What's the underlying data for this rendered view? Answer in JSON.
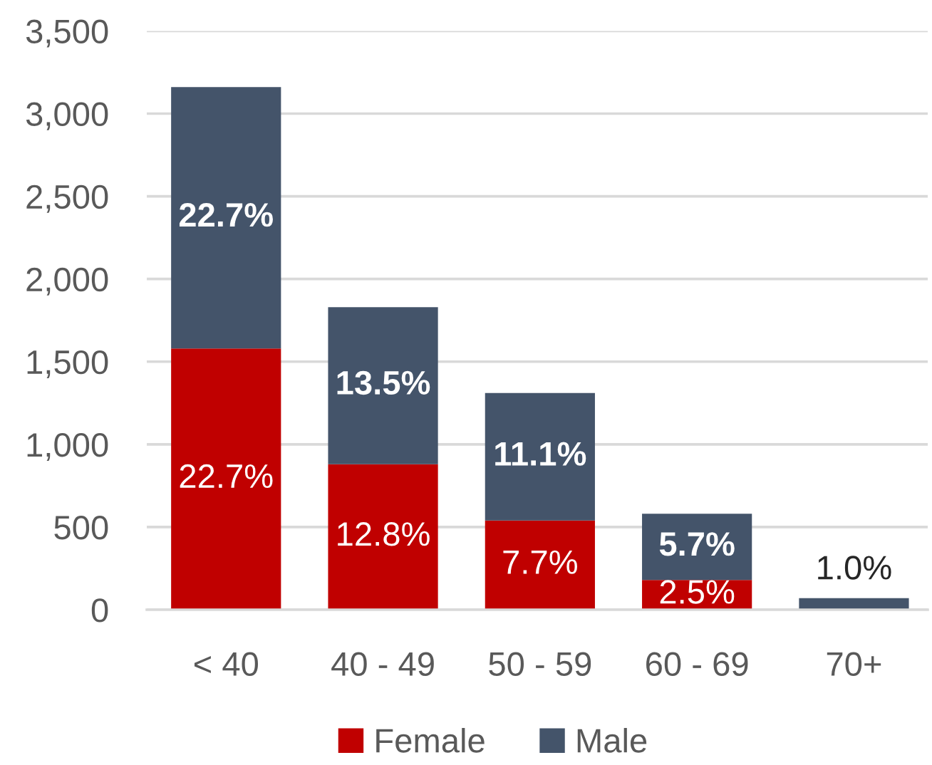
{
  "chart_data": {
    "type": "bar",
    "stacked": true,
    "categories": [
      "< 40",
      "40 - 49",
      "50 - 59",
      "60 - 69",
      "70+"
    ],
    "series": [
      {
        "name": "Female",
        "color": "#c00000",
        "values": [
          1580,
          880,
          540,
          180,
          0
        ]
      },
      {
        "name": "Male",
        "color": "#44546a",
        "values": [
          1580,
          950,
          770,
          400,
          70
        ]
      }
    ],
    "annotations": [
      "22.7%",
      {
        "text": "12.8%",
        "x": "40 - 49",
        "y": 880
      },
      {
        "text": "7.7%",
        "x": "50 - 59",
        "y": 540
      },
      {
        "text": "2.5%",
        "x": "60 - 69",
        "y": 180
      },
      "22.7%",
      {
        "text": "13.5%",
        "x": "40 - 49",
        "y": 1830
      },
      {
        "text": "11.1%",
        "x": "50 - 59",
        "y": 1310
      },
      {
        "text": "5.7%",
        "x": "60 - 69",
        "y": 580
      },
      {
        "text": "1.0%",
        "x": "70+",
        "y": 70
      }
    ],
    "ylim": [
      0,
      3500
    ],
    "yticks": [
      0,
      500,
      {
        "value": 1000,
        "label": "1,000"
      },
      {
        "value": 1500,
        "label": "1,500"
      },
      {
        "value": 2000,
        "label": "2,000"
      },
      {
        "value": 2500,
        "label": "2,500"
      },
      {
        "value": 3000,
        "label": "3,000"
      },
      {
        "value": 3500,
        "label": "3,500"
      }
    ],
    "grid": "y",
    "legend": "bottom"
  }
}
